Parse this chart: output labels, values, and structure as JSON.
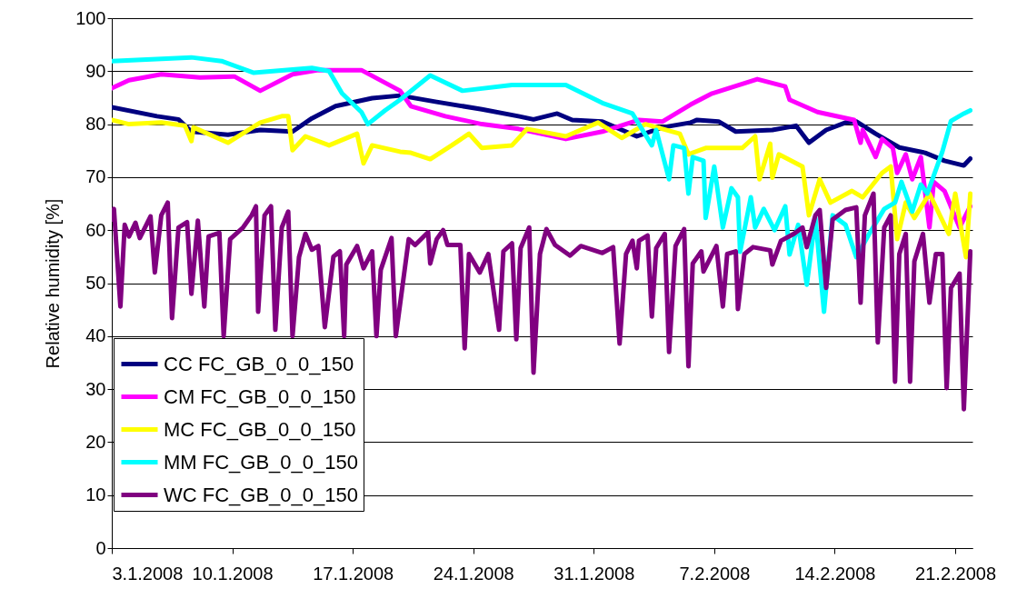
{
  "chart_data": {
    "type": "line",
    "ylabel": "Relative humidity [%]",
    "ylim": [
      0,
      100
    ],
    "yticks": [
      0,
      10,
      20,
      30,
      40,
      50,
      60,
      70,
      80,
      90,
      100
    ],
    "xlim": [
      "2008-01-03",
      "2008-02-22"
    ],
    "xticks": [
      {
        "value": "2008-01-03",
        "label": "3.1.2008"
      },
      {
        "value": "2008-01-10",
        "label": "10.1.2008"
      },
      {
        "value": "2008-01-17",
        "label": "17.1.2008"
      },
      {
        "value": "2008-01-24",
        "label": "24.1.2008"
      },
      {
        "value": "2008-01-31",
        "label": "31.1.2008"
      },
      {
        "value": "2008-02-07",
        "label": "7.2.2008"
      },
      {
        "value": "2008-02-14",
        "label": "14.2.2008"
      },
      {
        "value": "2008-02-21",
        "label": "21.2.2008"
      }
    ],
    "grid": "y",
    "legend": "bottom left",
    "series": [
      {
        "name": "CC FC_GB_0_0_150",
        "color": "#000080",
        "x": [
          "2008-01-03T00:00",
          "2008-01-05T15:00",
          "2008-01-06T21:00",
          "2008-01-07T15:00",
          "2008-01-09T18:00",
          "2008-01-11T15:00",
          "2008-01-13T12:00",
          "2008-01-14T15:00",
          "2008-01-16T00:00",
          "2008-01-18T03:00",
          "2008-01-19T18:00",
          "2008-01-21T21:00",
          "2008-01-24T12:00",
          "2008-01-26T15:00",
          "2008-01-27T12:00",
          "2008-01-28T21:00",
          "2008-01-29T18:00",
          "2008-01-31T12:00",
          "2008-02-02T12:00",
          "2008-02-04T00:00",
          "2008-02-05T15:00",
          "2008-02-06T00:00",
          "2008-02-07T06:00",
          "2008-02-08T06:00",
          "2008-02-10T09:00",
          "2008-02-11T18:00",
          "2008-02-12T12:00",
          "2008-02-13T12:00",
          "2008-02-14T15:00",
          "2008-02-15T06:00",
          "2008-02-16T09:00",
          "2008-02-17T18:00",
          "2008-02-19T06:00",
          "2008-02-20T09:00",
          "2008-02-21T12:00",
          "2008-02-21T21:00"
        ],
        "values": [
          83.2,
          81.5,
          80.9,
          78.6,
          78,
          78.9,
          78.6,
          81.1,
          83.4,
          84.9,
          85.4,
          84.2,
          82.8,
          81.5,
          80.9,
          82,
          80.8,
          80.5,
          77.7,
          79.4,
          80.3,
          80.8,
          80.5,
          78.6,
          78.9,
          79.7,
          76.5,
          78.9,
          80.3,
          80.5,
          78.2,
          75.6,
          74.6,
          73.1,
          72.2,
          73.5
        ]
      },
      {
        "name": "CM FC_GB_0_0_150",
        "color": "#ff00ff",
        "x": [
          "2008-01-03T00:00",
          "2008-01-04T00:00",
          "2008-01-05T21:00",
          "2008-01-08T03:00",
          "2008-01-10T03:00",
          "2008-01-11T15:00",
          "2008-01-13T12:00",
          "2008-01-15T00:00",
          "2008-01-17T12:00",
          "2008-01-19T18:00",
          "2008-01-20T09:00",
          "2008-01-22T09:00",
          "2008-01-24T12:00",
          "2008-01-26T15:00",
          "2008-01-29T09:00",
          "2008-01-31T12:00",
          "2008-02-02T15:00",
          "2008-02-04T00:00",
          "2008-02-05T15:00",
          "2008-02-06T21:00",
          "2008-02-09T12:00",
          "2008-02-11T03:00",
          "2008-02-11T09:00",
          "2008-02-13T00:00",
          "2008-02-15T03:00",
          "2008-02-15T12:00",
          "2008-02-15T15:00",
          "2008-02-16T09:00",
          "2008-02-16T18:00",
          "2008-02-17T09:00",
          "2008-02-17T15:00",
          "2008-02-18T03:00",
          "2008-02-18T12:00",
          "2008-02-19T00:00",
          "2008-02-19T12:00",
          "2008-02-19T18:00",
          "2008-02-20T09:00",
          "2008-02-21T06:00",
          "2008-02-21T21:00"
        ],
        "values": [
          86.8,
          88.3,
          89.4,
          88.8,
          89,
          86.3,
          89.4,
          90.2,
          90.2,
          86.3,
          83.4,
          81.5,
          80,
          79.1,
          77.2,
          78.6,
          80.8,
          80.5,
          83.7,
          85.8,
          88.5,
          87.1,
          84.6,
          82.3,
          80.8,
          76.5,
          78.9,
          73.8,
          77.2,
          75.5,
          70.8,
          74.3,
          69.6,
          73.8,
          60.5,
          69.1,
          67.4,
          60.5,
          64.5
        ]
      },
      {
        "name": "MC FC_GB_0_0_150",
        "color": "#ffff00",
        "x": [
          "2008-01-03T00:00",
          "2008-01-04T00:00",
          "2008-01-05T21:00",
          "2008-01-07T06:00",
          "2008-01-07T15:00",
          "2008-01-07T18:00",
          "2008-01-09T18:00",
          "2008-01-11T15:00",
          "2008-01-12T21:00",
          "2008-01-13T06:00",
          "2008-01-13T12:00",
          "2008-01-14T06:00",
          "2008-01-15T15:00",
          "2008-01-17T06:00",
          "2008-01-17T15:00",
          "2008-01-18T03:00",
          "2008-01-19T18:00",
          "2008-01-20T09:00",
          "2008-01-21T12:00",
          "2008-01-22T18:00",
          "2008-01-23T18:00",
          "2008-01-24T12:00",
          "2008-01-26T06:00",
          "2008-01-27T03:00",
          "2008-01-29T09:00",
          "2008-01-31T06:00",
          "2008-02-01T15:00",
          "2008-02-03T00:00",
          "2008-02-05T00:00",
          "2008-02-05T12:00",
          "2008-02-06T12:00",
          "2008-02-08T15:00",
          "2008-02-09T09:00",
          "2008-02-09T15:00",
          "2008-02-10T06:00",
          "2008-02-10T09:00",
          "2008-02-10T18:00",
          "2008-02-12T03:00",
          "2008-02-12T12:00",
          "2008-02-13T03:00",
          "2008-02-13T18:00",
          "2008-02-15T00:00",
          "2008-02-15T15:00",
          "2008-02-16T18:00",
          "2008-02-17T06:00",
          "2008-02-17T15:00",
          "2008-02-18T03:00",
          "2008-02-18T15:00",
          "2008-02-19T12:00",
          "2008-02-20T15:00",
          "2008-02-21T00:00",
          "2008-02-21T15:00",
          "2008-02-21T21:00"
        ],
        "values": [
          80.8,
          80,
          80.3,
          79.7,
          76.8,
          79.4,
          76.5,
          80.3,
          81.5,
          81.5,
          75.1,
          77.7,
          76,
          78.2,
          72.6,
          76,
          74.8,
          74.6,
          73.4,
          76,
          78.2,
          75.5,
          76,
          79.1,
          77.7,
          80.3,
          77.4,
          80,
          78.2,
          74.3,
          75.5,
          75.5,
          77.7,
          69.6,
          76.3,
          69.9,
          74.3,
          72,
          62.8,
          69.6,
          65.2,
          67.4,
          66.2,
          70.8,
          72,
          58.3,
          65.2,
          62.3,
          66.9,
          59.3,
          66.9,
          54.9,
          66.9
        ]
      },
      {
        "name": "MM FC_GB_0_0_150",
        "color": "#00ffff",
        "x": [
          "2008-01-03T00:00",
          "2008-01-07T15:00",
          "2008-01-09T09:00",
          "2008-01-11T06:00",
          "2008-01-14T15:00",
          "2008-01-15T15:00",
          "2008-01-16T09:00",
          "2008-01-17T12:00",
          "2008-01-17T21:00",
          "2008-01-18T21:00",
          "2008-01-19T18:00",
          "2008-01-21T12:00",
          "2008-01-23T09:00",
          "2008-01-26T06:00",
          "2008-01-29T09:00",
          "2008-01-31T12:00",
          "2008-02-02T06:00",
          "2008-02-03T09:00",
          "2008-02-03T15:00",
          "2008-02-04T09:00",
          "2008-02-04T15:00",
          "2008-02-05T06:00",
          "2008-02-05T12:00",
          "2008-02-05T18:00",
          "2008-02-06T09:00",
          "2008-02-06T12:00",
          "2008-02-07T00:00",
          "2008-02-07T12:00",
          "2008-02-08T00:00",
          "2008-02-08T09:00",
          "2008-02-08T12:00",
          "2008-02-09T03:00",
          "2008-02-09T09:00",
          "2008-02-09T21:00",
          "2008-02-10T12:00",
          "2008-02-11T03:00",
          "2008-02-11T09:00",
          "2008-02-11T21:00",
          "2008-02-12T09:00",
          "2008-02-12T21:00",
          "2008-02-13T09:00",
          "2008-02-13T21:00",
          "2008-02-14T15:00",
          "2008-02-15T06:00",
          "2008-02-16T00:00",
          "2008-02-16T21:00",
          "2008-02-17T12:00",
          "2008-02-17T21:00",
          "2008-02-18T12:00",
          "2008-02-19T00:00",
          "2008-02-19T09:00",
          "2008-02-20T06:00",
          "2008-02-20T18:00",
          "2008-02-21T12:00",
          "2008-02-21T21:00"
        ],
        "values": [
          91.9,
          92.6,
          91.9,
          89.7,
          90.6,
          90,
          85.8,
          82.3,
          80,
          82.6,
          84.6,
          89.2,
          86.3,
          87.4,
          87.4,
          84,
          82,
          76,
          78.9,
          69.6,
          76,
          75.5,
          66.9,
          73.8,
          73.1,
          62.3,
          72,
          60.5,
          67.9,
          66.2,
          55.9,
          66.2,
          60.5,
          64,
          60,
          64.5,
          55.4,
          61,
          49.7,
          62.3,
          44.6,
          62.8,
          61,
          54.9,
          59.3,
          64,
          65.2,
          69.1,
          63.5,
          68.6,
          66.9,
          74.8,
          80.6,
          82,
          82.6
        ]
      },
      {
        "name": "WC FC_GB_0_0_150",
        "color": "#800080",
        "x": [
          "2008-01-03T00:00",
          "2008-01-03T03:00",
          "2008-01-03T12:00",
          "2008-01-03T18:00",
          "2008-01-04T00:00",
          "2008-01-04T09:00",
          "2008-01-04T15:00",
          "2008-01-05T06:00",
          "2008-01-05T12:00",
          "2008-01-05T21:00",
          "2008-01-06T06:00",
          "2008-01-06T12:00",
          "2008-01-06T21:00",
          "2008-01-07T09:00",
          "2008-01-07T15:00",
          "2008-01-08T00:00",
          "2008-01-08T09:00",
          "2008-01-08T15:00",
          "2008-01-09T06:00",
          "2008-01-09T12:00",
          "2008-01-09T21:00",
          "2008-01-10T15:00",
          "2008-01-11T03:00",
          "2008-01-11T09:00",
          "2008-01-11T12:00",
          "2008-01-11T21:00",
          "2008-01-12T06:00",
          "2008-01-12T12:00",
          "2008-01-12T21:00",
          "2008-01-13T06:00",
          "2008-01-13T12:00",
          "2008-01-13T21:00",
          "2008-01-14T06:00",
          "2008-01-14T15:00",
          "2008-01-15T00:00",
          "2008-01-15T09:00",
          "2008-01-15T21:00",
          "2008-01-16T06:00",
          "2008-01-16T12:00",
          "2008-01-16T15:00",
          "2008-01-17T06:00",
          "2008-01-17T15:00",
          "2008-01-18T03:00",
          "2008-01-18T09:00",
          "2008-01-18T15:00",
          "2008-01-19T06:00",
          "2008-01-19T12:00",
          "2008-01-20T06:00",
          "2008-01-20T15:00",
          "2008-01-21T09:00",
          "2008-01-21T12:00",
          "2008-01-21T21:00",
          "2008-01-22T06:00",
          "2008-01-22T12:00",
          "2008-01-23T06:00",
          "2008-01-23T12:00",
          "2008-01-23T18:00",
          "2008-01-24T09:00",
          "2008-01-24T21:00",
          "2008-01-25T12:00",
          "2008-01-25T18:00",
          "2008-01-26T06:00",
          "2008-01-26T12:00",
          "2008-01-26T18:00",
          "2008-01-27T06:00",
          "2008-01-27T12:00",
          "2008-01-27T21:00",
          "2008-01-28T06:00",
          "2008-01-28T18:00",
          "2008-01-29T15:00",
          "2008-01-30T06:00",
          "2008-01-31T12:00",
          "2008-02-01T03:00",
          "2008-02-01T12:00",
          "2008-02-01T21:00",
          "2008-02-02T06:00",
          "2008-02-02T12:00",
          "2008-02-02T15:00",
          "2008-02-03T03:00",
          "2008-02-03T09:00",
          "2008-02-03T15:00",
          "2008-02-04T03:00",
          "2008-02-04T09:00",
          "2008-02-04T18:00",
          "2008-02-05T06:00",
          "2008-02-05T12:00",
          "2008-02-05T18:00",
          "2008-02-06T06:00",
          "2008-02-06T09:00",
          "2008-02-07T03:00",
          "2008-02-07T12:00",
          "2008-02-07T18:00",
          "2008-02-08T06:00",
          "2008-02-08T09:00",
          "2008-02-08T18:00",
          "2008-02-09T06:00",
          "2008-02-10T06:00",
          "2008-02-10T09:00",
          "2008-02-10T21:00",
          "2008-02-11T15:00",
          "2008-02-12T03:00",
          "2008-02-12T09:00",
          "2008-02-12T21:00",
          "2008-02-13T03:00",
          "2008-02-13T12:00",
          "2008-02-13T21:00",
          "2008-02-14T15:00",
          "2008-02-15T06:00",
          "2008-02-15T12:00",
          "2008-02-15T18:00",
          "2008-02-16T06:00",
          "2008-02-16T12:00",
          "2008-02-16T21:00",
          "2008-02-17T06:00",
          "2008-02-17T12:00",
          "2008-02-17T18:00",
          "2008-02-18T03:00",
          "2008-02-18T09:00",
          "2008-02-18T15:00",
          "2008-02-19T03:00",
          "2008-02-19T12:00",
          "2008-02-19T21:00",
          "2008-02-20T06:00",
          "2008-02-20T12:00",
          "2008-02-20T18:00",
          "2008-02-21T06:00",
          "2008-02-21T12:00",
          "2008-02-21T21:00"
        ],
        "values": [
          62,
          64,
          45.6,
          61,
          58.8,
          61.4,
          58.5,
          62.6,
          52,
          62.8,
          65.2,
          43.4,
          60.5,
          61.5,
          48,
          61.8,
          45.6,
          58.8,
          59.5,
          40,
          58.3,
          60.5,
          62.8,
          64.5,
          44.6,
          62.8,
          64.5,
          41.2,
          60.5,
          63.5,
          40,
          54.9,
          59.3,
          56.3,
          57,
          41.7,
          55,
          56,
          40,
          53.5,
          57,
          52.8,
          56,
          40,
          52.5,
          58.5,
          40,
          58.3,
          57.2,
          59.6,
          53.7,
          58.3,
          60,
          57.2,
          57.2,
          37.7,
          55.5,
          52,
          55.5,
          41.2,
          56,
          57.5,
          39.4,
          56.6,
          60.5,
          33.1,
          55.5,
          60.2,
          57.2,
          55.2,
          57,
          55.7,
          56.8,
          38.6,
          55.5,
          58,
          52.8,
          58,
          59,
          43.7,
          56.6,
          59.3,
          37,
          57,
          60.2,
          34.3,
          53.7,
          56,
          52.2,
          57,
          45.6,
          55.5,
          56,
          45.1,
          55.5,
          56.8,
          56.2,
          53.5,
          58,
          59.3,
          60.5,
          56.8,
          62.8,
          63.8,
          49.1,
          62,
          63.8,
          64.3,
          46.3,
          62.8,
          66.9,
          38.8,
          60.5,
          62.8,
          31.4,
          55.5,
          59.3,
          31.4,
          54.1,
          59.3,
          46.3,
          55.5,
          55.5,
          30.2,
          49.1,
          51.8,
          26.2,
          56
        ]
      }
    ]
  }
}
